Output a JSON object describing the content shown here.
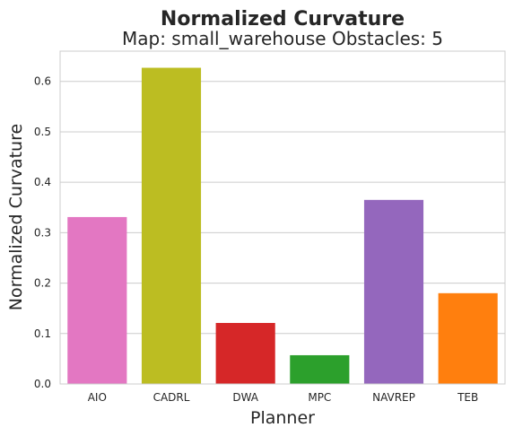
{
  "chart_data": {
    "type": "bar",
    "suptitle": "Normalized Curvature",
    "title": "Map: small_warehouse Obstacles: 5",
    "xlabel": "Planner",
    "ylabel": "Normalized Curvature",
    "categories": [
      "AIO",
      "CADRL",
      "DWA",
      "MPC",
      "NAVREP",
      "TEB"
    ],
    "values": [
      0.331,
      0.627,
      0.121,
      0.057,
      0.365,
      0.18
    ],
    "colors": [
      "#e377c2",
      "#bcbd22",
      "#d62728",
      "#2ca02c",
      "#9467bd",
      "#ff7f0e"
    ],
    "ylim": [
      0,
      0.66
    ],
    "yticks": [
      "0.0",
      "0.1",
      "0.2",
      "0.3",
      "0.4",
      "0.5",
      "0.6"
    ],
    "grid": "horizontal",
    "legend": "none"
  }
}
